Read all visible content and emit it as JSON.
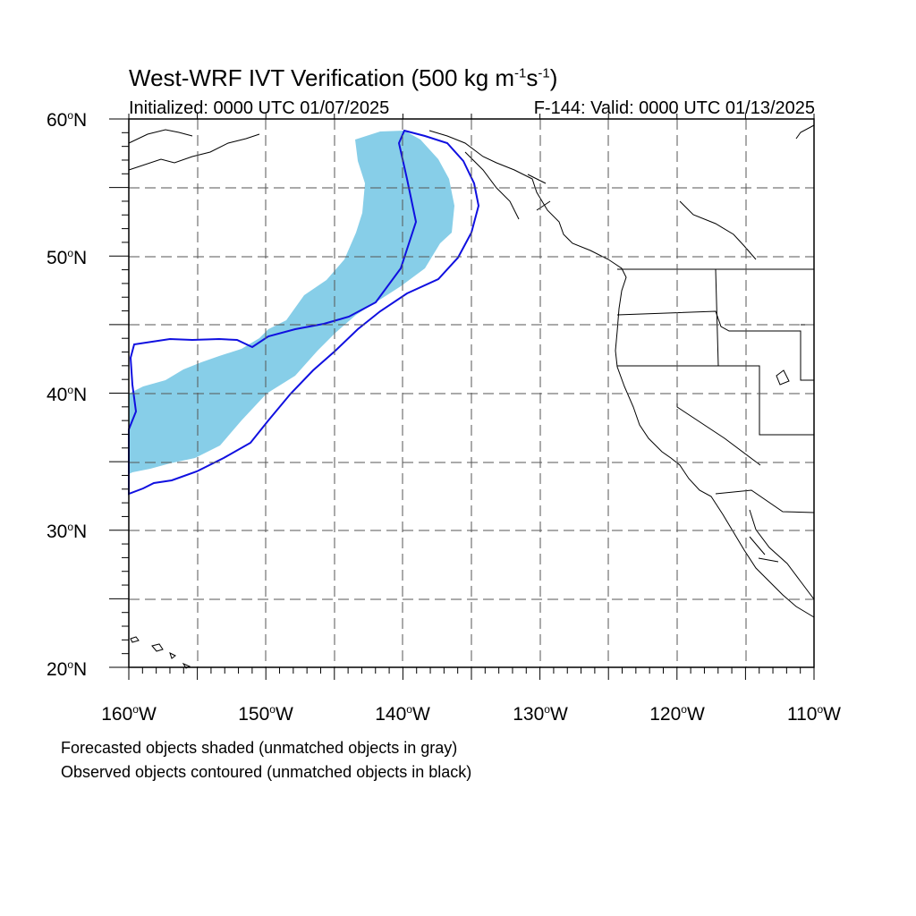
{
  "title": {
    "prefix": "West-WRF IVT Verification (500 kg m",
    "exp1": "-1",
    "mid": "s",
    "exp2": "-1",
    "suffix": ")"
  },
  "subtitle_left": "Initialized: 0000 UTC 01/07/2025",
  "subtitle_right": "F-144: Valid: 0000 UTC 01/13/2025",
  "lat_labels": [
    {
      "deg": "60",
      "hemi": "N"
    },
    {
      "deg": "50",
      "hemi": "N"
    },
    {
      "deg": "40",
      "hemi": "N"
    },
    {
      "deg": "30",
      "hemi": "N"
    },
    {
      "deg": "20",
      "hemi": "N"
    }
  ],
  "lon_labels": [
    {
      "deg": "160",
      "hemi": "W"
    },
    {
      "deg": "150",
      "hemi": "W"
    },
    {
      "deg": "140",
      "hemi": "W"
    },
    {
      "deg": "130",
      "hemi": "W"
    },
    {
      "deg": "120",
      "hemi": "W"
    },
    {
      "deg": "110",
      "hemi": "W"
    }
  ],
  "notes": [
    "Forecasted objects shaded (unmatched objects in gray)",
    "Observed objects contoured (unmatched objects in black)"
  ],
  "map": {
    "lon_range": [
      -160,
      -110
    ],
    "lat_range": [
      20,
      60
    ],
    "gridlines": "dashed, every 5°",
    "forecast_fill_color": "#87CEE8",
    "observed_contour_color": "#1010E0"
  }
}
